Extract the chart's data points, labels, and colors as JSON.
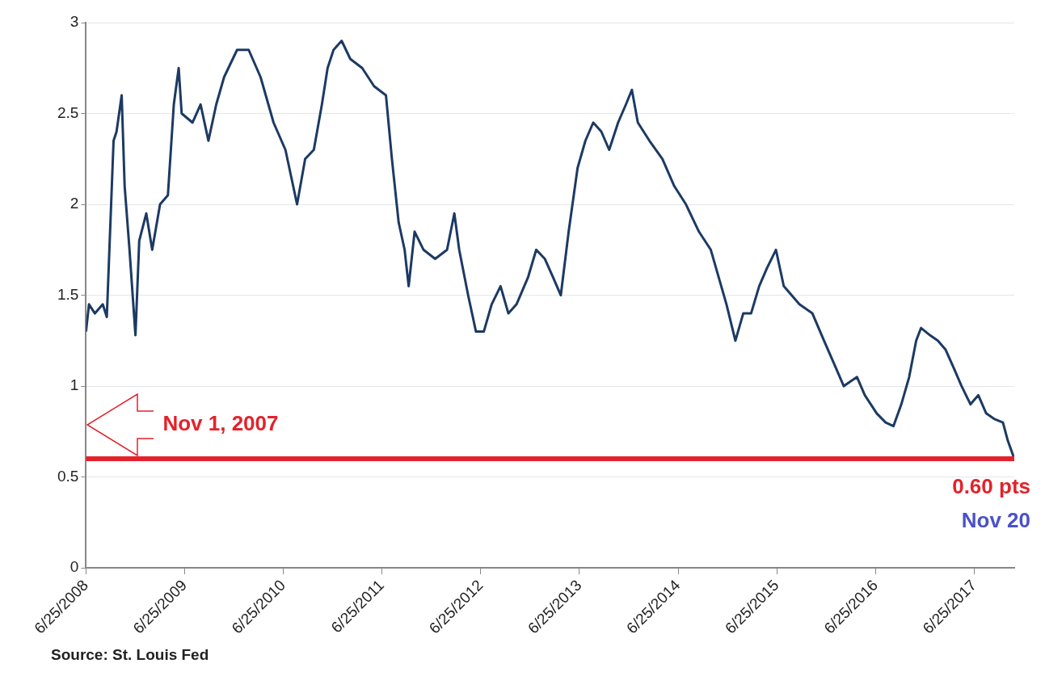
{
  "chart_data": {
    "type": "line",
    "x": [
      "2008-06-25",
      "2008-07-06",
      "2008-07-28",
      "2008-08-26",
      "2008-09-10",
      "2008-10-05",
      "2008-10-16",
      "2008-11-04",
      "2008-11-15",
      "2008-12-03",
      "2008-12-25",
      "2009-01-08",
      "2009-02-03",
      "2009-02-25",
      "2009-03-26",
      "2009-04-24",
      "2009-05-16",
      "2009-06-03",
      "2009-06-14",
      "2009-07-24",
      "2009-08-23",
      "2009-09-21",
      "2009-10-20",
      "2009-11-18",
      "2010-01-05",
      "2010-02-17",
      "2010-04-02",
      "2010-05-20",
      "2010-07-03",
      "2010-08-15",
      "2010-09-14",
      "2010-10-16",
      "2010-11-15",
      "2010-12-06",
      "2010-12-28",
      "2011-01-27",
      "2011-02-28",
      "2011-04-13",
      "2011-05-27",
      "2011-07-10",
      "2011-08-01",
      "2011-08-26",
      "2011-09-17",
      "2011-10-02",
      "2011-10-24",
      "2011-11-26",
      "2012-01-08",
      "2012-02-21",
      "2012-03-19",
      "2012-04-06",
      "2012-05-09",
      "2012-06-07",
      "2012-07-06",
      "2012-08-04",
      "2012-09-06",
      "2012-10-05",
      "2012-11-04",
      "2012-12-17",
      "2013-01-16",
      "2013-02-17",
      "2013-03-19",
      "2013-04-17",
      "2013-05-16",
      "2013-06-18",
      "2013-07-17",
      "2013-08-15",
      "2013-09-14",
      "2013-10-13",
      "2013-11-15",
      "2013-12-14",
      "2014-01-05",
      "2014-01-27",
      "2014-03-11",
      "2014-04-28",
      "2014-06-11",
      "2014-07-24",
      "2014-09-10",
      "2014-10-24",
      "2014-11-22",
      "2014-12-21",
      "2015-01-23",
      "2015-02-21",
      "2015-03-22",
      "2015-04-21",
      "2015-05-20",
      "2015-06-22",
      "2015-07-21",
      "2015-08-19",
      "2015-09-17",
      "2015-11-04",
      "2015-12-17",
      "2016-01-30",
      "2016-02-28",
      "2016-04-17",
      "2016-05-16",
      "2016-06-29",
      "2016-08-01",
      "2016-08-30",
      "2016-09-28",
      "2016-10-27",
      "2016-11-22",
      "2016-12-10",
      "2017-01-12",
      "2017-02-10",
      "2017-03-11",
      "2017-04-10",
      "2017-05-09",
      "2017-06-11",
      "2017-07-10",
      "2017-08-08",
      "2017-09-06",
      "2017-10-09",
      "2017-10-27",
      "2017-11-20"
    ],
    "series": [
      {
        "color": "#1c3a63",
        "values": [
          1.3,
          1.45,
          1.4,
          1.45,
          1.38,
          2.35,
          2.4,
          2.6,
          2.1,
          1.75,
          1.28,
          1.8,
          1.95,
          1.75,
          2.0,
          2.05,
          2.55,
          2.75,
          2.5,
          2.45,
          2.55,
          2.35,
          2.55,
          2.7,
          2.85,
          2.85,
          2.7,
          2.45,
          2.3,
          2.0,
          2.25,
          2.3,
          2.55,
          2.75,
          2.85,
          2.9,
          2.8,
          2.75,
          2.65,
          2.6,
          2.25,
          1.9,
          1.75,
          1.55,
          1.85,
          1.75,
          1.7,
          1.75,
          1.95,
          1.75,
          1.5,
          1.3,
          1.3,
          1.45,
          1.55,
          1.4,
          1.45,
          1.6,
          1.75,
          1.7,
          1.6,
          1.5,
          1.85,
          2.2,
          2.35,
          2.45,
          2.4,
          2.3,
          2.45,
          2.55,
          2.63,
          2.45,
          2.35,
          2.25,
          2.1,
          2.0,
          1.85,
          1.75,
          1.6,
          1.45,
          1.25,
          1.4,
          1.4,
          1.55,
          1.65,
          1.75,
          1.55,
          1.5,
          1.45,
          1.4,
          1.25,
          1.1,
          1.0,
          1.05,
          0.95,
          0.85,
          0.8,
          0.78,
          0.9,
          1.05,
          1.25,
          1.32,
          1.28,
          1.25,
          1.2,
          1.1,
          1.0,
          0.9,
          0.95,
          0.85,
          0.82,
          0.8,
          0.7,
          0.6
        ]
      }
    ],
    "xlim": [
      "2008-06-25",
      "2017-11-20"
    ],
    "xticks": [
      {
        "value": "2008-06-25",
        "label": "6/25/2008"
      },
      {
        "value": "2009-06-25",
        "label": "6/25/2009"
      },
      {
        "value": "2010-06-25",
        "label": "6/25/2010"
      },
      {
        "value": "2011-06-25",
        "label": "6/25/2011"
      },
      {
        "value": "2012-06-25",
        "label": "6/25/2012"
      },
      {
        "value": "2013-06-25",
        "label": "6/25/2013"
      },
      {
        "value": "2014-06-25",
        "label": "6/25/2014"
      },
      {
        "value": "2015-06-25",
        "label": "6/25/2015"
      },
      {
        "value": "2016-06-25",
        "label": "6/25/2016"
      },
      {
        "value": "2017-06-25",
        "label": "6/25/2017"
      }
    ],
    "ylim": [
      0,
      3
    ],
    "yticks": [
      {
        "value": 0,
        "label": "0"
      },
      {
        "value": 0.5,
        "label": "0.5"
      },
      {
        "value": 1,
        "label": "1"
      },
      {
        "value": 1.5,
        "label": "1.5"
      },
      {
        "value": 2,
        "label": "2"
      },
      {
        "value": 2.5,
        "label": "2.5"
      },
      {
        "value": 3,
        "label": "3"
      }
    ],
    "grid": "y",
    "marker": "none",
    "line_style": "solid",
    "ref_lines": [
      {
        "axis": "y",
        "value": 0.6,
        "label": "Nov 1, 2007",
        "color": "#e3222b"
      }
    ],
    "annotations": [
      {
        "text": "0.60 pts",
        "x": "2017-11-20",
        "y": 0.6
      },
      {
        "text": "Nov 20",
        "x": "2017-11-20",
        "y": 0.6
      },
      "Source: St. Louis Fed"
    ]
  }
}
